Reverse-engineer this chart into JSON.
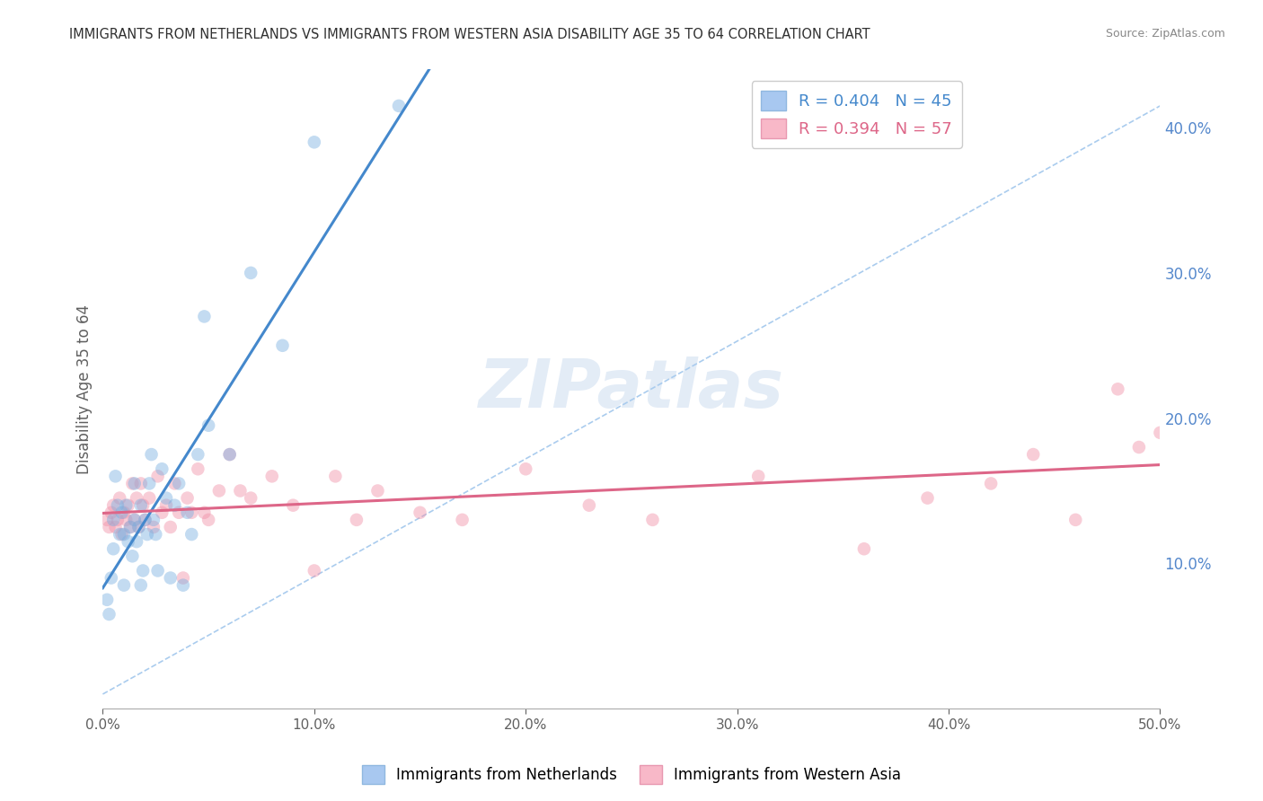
{
  "title": "IMMIGRANTS FROM NETHERLANDS VS IMMIGRANTS FROM WESTERN ASIA DISABILITY AGE 35 TO 64 CORRELATION CHART",
  "source": "Source: ZipAtlas.com",
  "ylabel": "Disability Age 35 to 64",
  "xlim": [
    0.0,
    0.5
  ],
  "ylim": [
    0.0,
    0.44
  ],
  "xticks": [
    0.0,
    0.1,
    0.2,
    0.3,
    0.4,
    0.5
  ],
  "yticks_right": [
    0.1,
    0.2,
    0.3,
    0.4
  ],
  "legend1_label": "R = 0.404   N = 45",
  "legend2_label": "R = 0.394   N = 57",
  "legend1_patch_color": "#a8c8f0",
  "legend2_patch_color": "#f8b8c8",
  "series1_color": "#7ab0e0",
  "series2_color": "#f090a8",
  "trend1_color": "#4488cc",
  "trend2_color": "#dd6688",
  "ref_line_color": "#aaccee",
  "background_color": "#ffffff",
  "grid_color": "#e0e0e8",
  "title_color": "#303030",
  "axis_label_color": "#606060",
  "right_axis_color": "#5588cc",
  "netherlands_x": [
    0.002,
    0.003,
    0.004,
    0.005,
    0.005,
    0.006,
    0.007,
    0.008,
    0.009,
    0.01,
    0.01,
    0.011,
    0.012,
    0.013,
    0.014,
    0.015,
    0.015,
    0.016,
    0.017,
    0.018,
    0.018,
    0.019,
    0.02,
    0.021,
    0.022,
    0.023,
    0.024,
    0.025,
    0.026,
    0.028,
    0.03,
    0.032,
    0.034,
    0.036,
    0.038,
    0.04,
    0.042,
    0.045,
    0.048,
    0.05,
    0.06,
    0.07,
    0.085,
    0.1,
    0.14
  ],
  "netherlands_y": [
    0.075,
    0.065,
    0.09,
    0.13,
    0.11,
    0.16,
    0.14,
    0.12,
    0.135,
    0.12,
    0.085,
    0.14,
    0.115,
    0.125,
    0.105,
    0.13,
    0.155,
    0.115,
    0.125,
    0.14,
    0.085,
    0.095,
    0.13,
    0.12,
    0.155,
    0.175,
    0.13,
    0.12,
    0.095,
    0.165,
    0.145,
    0.09,
    0.14,
    0.155,
    0.085,
    0.135,
    0.12,
    0.175,
    0.27,
    0.195,
    0.175,
    0.3,
    0.25,
    0.39,
    0.415
  ],
  "western_asia_x": [
    0.002,
    0.003,
    0.004,
    0.005,
    0.006,
    0.007,
    0.008,
    0.009,
    0.01,
    0.011,
    0.012,
    0.013,
    0.014,
    0.015,
    0.016,
    0.017,
    0.018,
    0.019,
    0.02,
    0.022,
    0.024,
    0.026,
    0.028,
    0.03,
    0.032,
    0.034,
    0.036,
    0.038,
    0.04,
    0.042,
    0.045,
    0.048,
    0.05,
    0.055,
    0.06,
    0.065,
    0.07,
    0.08,
    0.09,
    0.1,
    0.11,
    0.12,
    0.13,
    0.15,
    0.17,
    0.2,
    0.23,
    0.26,
    0.31,
    0.36,
    0.39,
    0.42,
    0.44,
    0.46,
    0.48,
    0.49,
    0.5
  ],
  "western_asia_y": [
    0.13,
    0.125,
    0.135,
    0.14,
    0.125,
    0.13,
    0.145,
    0.12,
    0.135,
    0.13,
    0.14,
    0.125,
    0.155,
    0.13,
    0.145,
    0.125,
    0.155,
    0.14,
    0.13,
    0.145,
    0.125,
    0.16,
    0.135,
    0.14,
    0.125,
    0.155,
    0.135,
    0.09,
    0.145,
    0.135,
    0.165,
    0.135,
    0.13,
    0.15,
    0.175,
    0.15,
    0.145,
    0.16,
    0.14,
    0.095,
    0.16,
    0.13,
    0.15,
    0.135,
    0.13,
    0.165,
    0.14,
    0.13,
    0.16,
    0.11,
    0.145,
    0.155,
    0.175,
    0.13,
    0.22,
    0.18,
    0.19
  ],
  "marker_size": 110,
  "marker_alpha": 0.45,
  "trend_linewidth": 2.2,
  "ref_linewidth": 1.2,
  "ref_line_start_x": 0.0,
  "ref_line_end_x": 0.5,
  "ref_line_start_y": 0.01,
  "ref_line_end_y": 0.415
}
